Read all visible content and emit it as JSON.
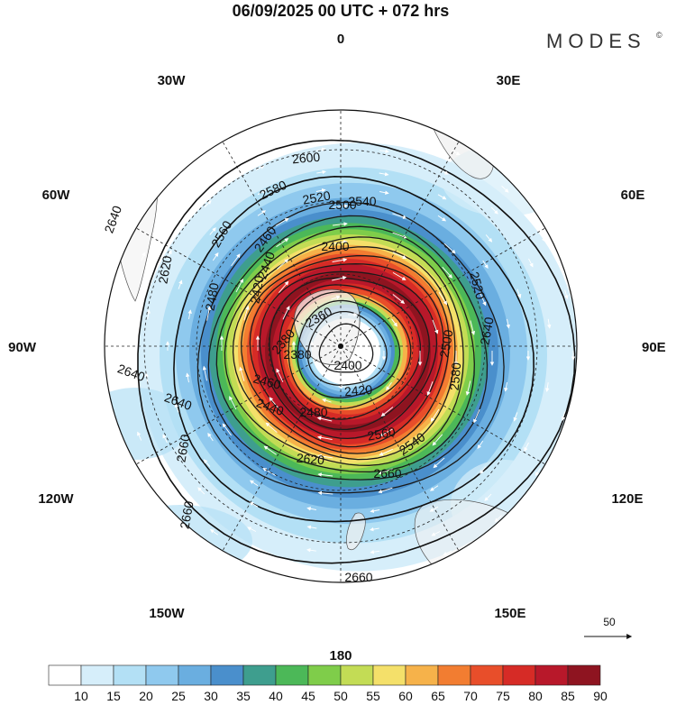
{
  "title": "06/09/2025  00 UTC  + 072 hrs",
  "brand": "MODES",
  "brand_mark": "©",
  "lon_labels": [
    "0",
    "30E",
    "60E",
    "90E",
    "120E",
    "150E",
    "180",
    "150W",
    "120W",
    "90W",
    "60W",
    "30W"
  ],
  "contour_labels": [
    "2640",
    "2620",
    "2600",
    "2580",
    "2560",
    "2540",
    "2520",
    "2500",
    "2480",
    "2460",
    "2440",
    "2420",
    "2400",
    "2380",
    "2360",
    "2660",
    "2660",
    "2660",
    "2660",
    "2640",
    "2640",
    "2640",
    "2620",
    "2580",
    "2560",
    "2540",
    "2520",
    "2500",
    "2480",
    "2460",
    "2440",
    "2420",
    "2400",
    "2380"
  ],
  "reference_vector": {
    "label": "50",
    "units_speed": 50
  },
  "colorbar": {
    "ticks": [
      "10",
      "15",
      "20",
      "25",
      "30",
      "35",
      "40",
      "45",
      "50",
      "55",
      "60",
      "65",
      "70",
      "75",
      "80",
      "85",
      "90"
    ],
    "colors": [
      "#ffffff",
      "#d6eefa",
      "#b3e0f5",
      "#8fc9ee",
      "#6aaee0",
      "#4a8fcc",
      "#3e9e8e",
      "#4cb858",
      "#7fcd4a",
      "#c3dc55",
      "#f4e06a",
      "#f6b24a",
      "#f27d31",
      "#e84e2a",
      "#d62b26",
      "#b8182a",
      "#8e1420"
    ]
  },
  "chart_data": {
    "type": "heatmap",
    "title": "06/09/2025  00 UTC  + 072 hrs",
    "projection": "south polar stereographic",
    "field_shaded": "wind speed",
    "field_contoured": "geopotential height",
    "contour_levels": [
      2360,
      2380,
      2400,
      2420,
      2440,
      2460,
      2480,
      2500,
      2520,
      2540,
      2560,
      2580,
      2600,
      2620,
      2640,
      2660
    ],
    "contour_interval": 20,
    "speed_bins": [
      10,
      15,
      20,
      25,
      30,
      35,
      40,
      45,
      50,
      55,
      60,
      65,
      70,
      75,
      80,
      85,
      90
    ],
    "jet_core_speed_min": 80,
    "reference_vector": 50
  }
}
